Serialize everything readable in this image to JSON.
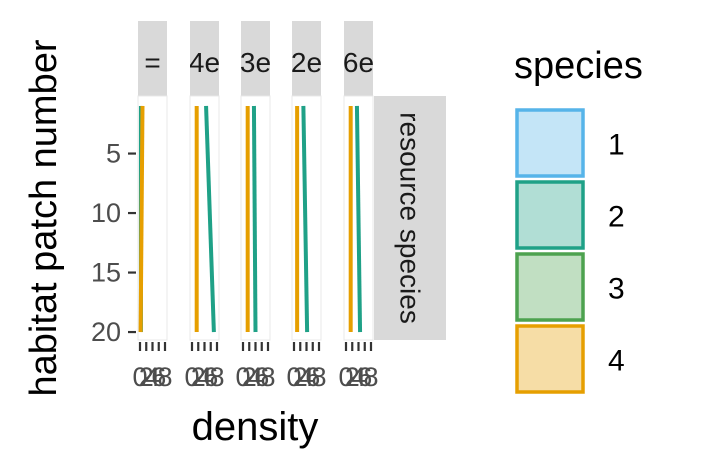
{
  "chart_data": {
    "type": "line",
    "facet_strips": [
      "=",
      "4e",
      "3e",
      "2e",
      "6e"
    ],
    "row_strip": "resource species",
    "xlabel": "density",
    "ylabel": "habitat patch number",
    "y_ticks": [
      5,
      10,
      15,
      20
    ],
    "y_reversed": true,
    "ylim": [
      0.5,
      20.5
    ],
    "x_tick_labels": [
      "0",
      "2",
      "4",
      "6",
      "8"
    ],
    "xlim": [
      0,
      8
    ],
    "legend": {
      "title": "species",
      "position": "right",
      "entries": [
        {
          "label": "1",
          "color": "#56B4E9"
        },
        {
          "label": "2",
          "color": "#1FA187"
        },
        {
          "label": "3",
          "color": "#4DA24F"
        },
        {
          "label": "4",
          "color": "#E69F00"
        }
      ]
    },
    "series_colors": {
      "2": "#1FA187",
      "4": "#E69F00"
    },
    "panels": [
      {
        "series": [
          {
            "species": "2",
            "y": [
              1,
              20
            ],
            "x": [
              0.3,
              0.3
            ]
          },
          {
            "species": "4",
            "y": [
              1,
              20
            ],
            "x": [
              0.8,
              0.2
            ]
          }
        ]
      },
      {
        "series": [
          {
            "species": "2",
            "y": [
              1,
              20
            ],
            "x": [
              4.5,
              7.0
            ]
          },
          {
            "species": "4",
            "y": [
              1,
              20
            ],
            "x": [
              1.5,
              1.5
            ]
          }
        ]
      },
      {
        "series": [
          {
            "species": "2",
            "y": [
              1,
              20
            ],
            "x": [
              3.5,
              4.0
            ]
          },
          {
            "species": "4",
            "y": [
              1,
              20
            ],
            "x": [
              1.5,
              1.5
            ]
          }
        ]
      },
      {
        "series": [
          {
            "species": "2",
            "y": [
              1,
              20
            ],
            "x": [
              3.0,
              4.2
            ]
          },
          {
            "species": "4",
            "y": [
              1,
              20
            ],
            "x": [
              1.0,
              1.0
            ]
          }
        ]
      },
      {
        "series": [
          {
            "species": "2",
            "y": [
              1,
              20
            ],
            "x": [
              3.5,
              4.5
            ]
          },
          {
            "species": "4",
            "y": [
              1,
              20
            ],
            "x": [
              1.5,
              1.5
            ]
          }
        ]
      }
    ]
  }
}
